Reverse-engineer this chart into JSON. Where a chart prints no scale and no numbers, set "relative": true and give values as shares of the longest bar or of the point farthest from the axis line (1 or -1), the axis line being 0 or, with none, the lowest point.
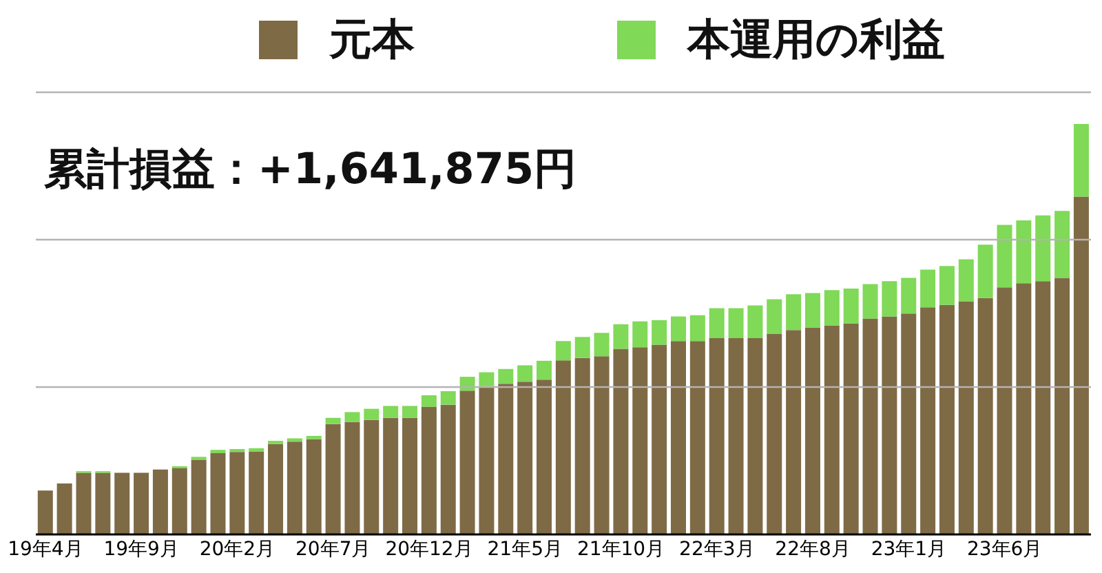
{
  "chart_data": {
    "type": "bar",
    "stacked": true,
    "relative": true,
    "legend": "top",
    "tick_labels": "x",
    "ref_lines": [
      {
        "axis": "y",
        "value": 0.359,
        "color": "#b4b4b4"
      },
      {
        "axis": "y",
        "value": 0.718,
        "color": "#b4b4b4"
      },
      {
        "axis": "y",
        "value": 1.077,
        "color": "#b4b4b4"
      }
    ],
    "annotations": [
      "累計損益：+1,641,875円"
    ],
    "categories": [
      "19年4月",
      null,
      null,
      null,
      null,
      "19年9月",
      null,
      null,
      null,
      null,
      "20年2月",
      null,
      null,
      null,
      null,
      "20年7月",
      null,
      null,
      null,
      null,
      "20年12月",
      null,
      null,
      null,
      null,
      "21年5月",
      null,
      null,
      null,
      null,
      "21年10月",
      null,
      null,
      null,
      null,
      "22年3月",
      null,
      null,
      null,
      null,
      "22年8月",
      null,
      null,
      null,
      null,
      "23年1月",
      null,
      null,
      null,
      null,
      "23年6月",
      null,
      null,
      null,
      null
    ],
    "series": [
      {
        "name": "元本",
        "color": "#7f6a46",
        "values": [
          0.107,
          0.124,
          0.15,
          0.15,
          0.15,
          0.15,
          0.158,
          0.161,
          0.182,
          0.198,
          0.201,
          0.202,
          0.22,
          0.226,
          0.232,
          0.269,
          0.274,
          0.279,
          0.284,
          0.284,
          0.311,
          0.316,
          0.35,
          0.361,
          0.367,
          0.372,
          0.377,
          0.424,
          0.43,
          0.434,
          0.452,
          0.456,
          0.462,
          0.471,
          0.471,
          0.478,
          0.478,
          0.478,
          0.488,
          0.498,
          0.504,
          0.509,
          0.514,
          0.526,
          0.531,
          0.538,
          0.553,
          0.559,
          0.568,
          0.576,
          0.602,
          0.612,
          0.617,
          0.625,
          0.823
        ]
      },
      {
        "name": "本運用の利益",
        "color": "#80d957",
        "values": [
          0,
          0,
          0.004,
          0.004,
          0,
          0,
          0,
          0.005,
          0.007,
          0.008,
          0.007,
          0.008,
          0.008,
          0.008,
          0.008,
          0.015,
          0.024,
          0.027,
          0.029,
          0.029,
          0.028,
          0.033,
          0.034,
          0.034,
          0.036,
          0.04,
          0.046,
          0.047,
          0.051,
          0.057,
          0.06,
          0.063,
          0.06,
          0.06,
          0.063,
          0.073,
          0.073,
          0.08,
          0.085,
          0.087,
          0.084,
          0.086,
          0.085,
          0.084,
          0.086,
          0.087,
          0.092,
          0.095,
          0.102,
          0.13,
          0.152,
          0.153,
          0.16,
          0.163,
          0.177
        ]
      }
    ]
  }
}
